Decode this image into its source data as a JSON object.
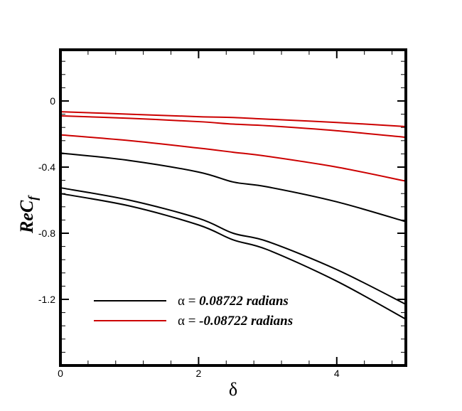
{
  "chart_data": {
    "type": "line",
    "title": "",
    "xlabel": "δ",
    "ylabel": "ReC_f",
    "ylabel_main": "ReC",
    "ylabel_sub": "f",
    "xlim": [
      0,
      5
    ],
    "ylim": [
      -1.6,
      0.31
    ],
    "grid": false,
    "x_ticks": [
      0,
      2,
      4
    ],
    "x_tick_labels": [
      "0",
      "2",
      "4"
    ],
    "y_ticks": [
      0,
      -0.4,
      -0.8,
      -1.2
    ],
    "y_tick_labels": [
      "0",
      "-0.4",
      "-0.8",
      "-1.2"
    ],
    "legend_position": "lower-left inside",
    "legend": [
      {
        "label": "α = 0.08722 radians",
        "alpha_symbol": "α =",
        "value_text": "0.08722 radians",
        "color": "#000000"
      },
      {
        "label": "α = -0.08722 radians",
        "alpha_symbol": "α =",
        "value_text": "-0.08722 radians",
        "color": "#cc0000"
      }
    ],
    "x": [
      0,
      1,
      2,
      2.5,
      3,
      4,
      5
    ],
    "series": [
      {
        "name": "α = -0.08722 radians (curve 1)",
        "color": "#cc0000",
        "values": [
          -0.065,
          -0.08,
          -0.095,
          -0.1,
          -0.11,
          -0.13,
          -0.155
        ]
      },
      {
        "name": "α = -0.08722 radians (curve 2)",
        "color": "#cc0000",
        "values": [
          -0.09,
          -0.105,
          -0.125,
          -0.14,
          -0.15,
          -0.18,
          -0.22
        ]
      },
      {
        "name": "α = -0.08722 radians (curve 3)",
        "color": "#cc0000",
        "values": [
          -0.205,
          -0.24,
          -0.285,
          -0.31,
          -0.335,
          -0.4,
          -0.485
        ]
      },
      {
        "name": "α = 0.08722 radians (curve 1)",
        "color": "#000000",
        "values": [
          -0.315,
          -0.36,
          -0.43,
          -0.49,
          -0.52,
          -0.61,
          -0.73
        ]
      },
      {
        "name": "α = 0.08722 radians (curve 2)",
        "color": "#000000",
        "values": [
          -0.525,
          -0.6,
          -0.71,
          -0.8,
          -0.85,
          -1.02,
          -1.23
        ]
      },
      {
        "name": "α = 0.08722 radians (curve 3)",
        "color": "#000000",
        "values": [
          -0.56,
          -0.635,
          -0.75,
          -0.84,
          -0.9,
          -1.09,
          -1.32
        ]
      }
    ]
  }
}
